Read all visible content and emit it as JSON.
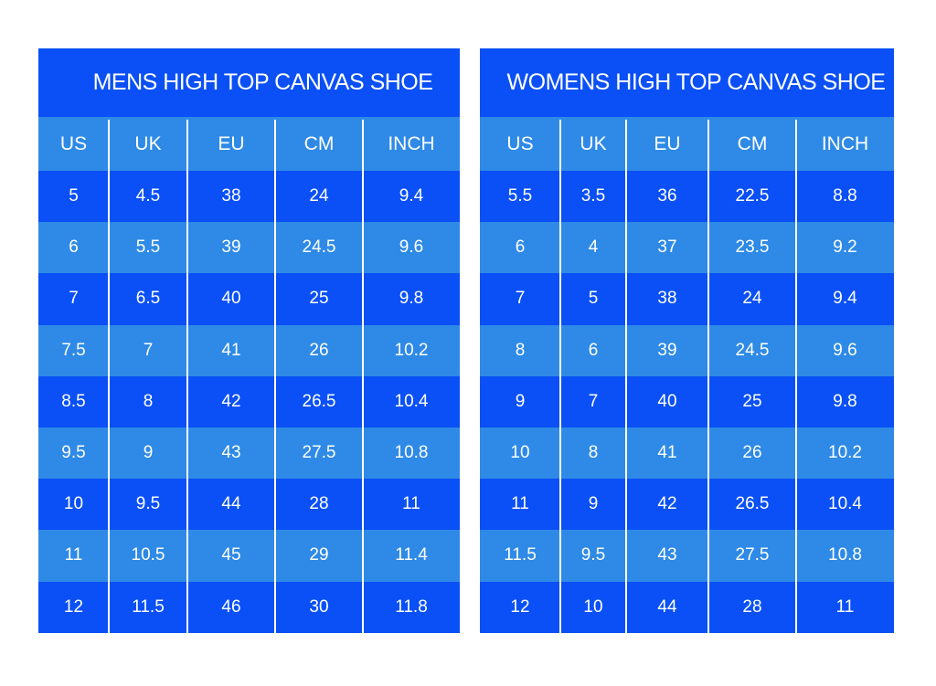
{
  "tables": [
    {
      "title": "MENS HIGH TOP CANVAS SHOE",
      "headers": [
        "US",
        "UK",
        "EU",
        "CM",
        "INCH"
      ],
      "rows": [
        [
          "5",
          "4.5",
          "38",
          "24",
          "9.4"
        ],
        [
          "6",
          "5.5",
          "39",
          "24.5",
          "9.6"
        ],
        [
          "7",
          "6.5",
          "40",
          "25",
          "9.8"
        ],
        [
          "7.5",
          "7",
          "41",
          "26",
          "10.2"
        ],
        [
          "8.5",
          "8",
          "42",
          "26.5",
          "10.4"
        ],
        [
          "9.5",
          "9",
          "43",
          "27.5",
          "10.8"
        ],
        [
          "10",
          "9.5",
          "44",
          "28",
          "11"
        ],
        [
          "11",
          "10.5",
          "45",
          "29",
          "11.4"
        ],
        [
          "12",
          "11.5",
          "46",
          "30",
          "11.8"
        ]
      ]
    },
    {
      "title": "WOMENS HIGH TOP CANVAS SHOE",
      "headers": [
        "US",
        "UK",
        "EU",
        "CM",
        "INCH"
      ],
      "rows": [
        [
          "5.5",
          "3.5",
          "36",
          "22.5",
          "8.8"
        ],
        [
          "6",
          "4",
          "37",
          "23.5",
          "9.2"
        ],
        [
          "7",
          "5",
          "38",
          "24",
          "9.4"
        ],
        [
          "8",
          "6",
          "39",
          "24.5",
          "9.6"
        ],
        [
          "9",
          "7",
          "40",
          "25",
          "9.8"
        ],
        [
          "10",
          "8",
          "41",
          "26",
          "10.2"
        ],
        [
          "11",
          "9",
          "42",
          "26.5",
          "10.4"
        ],
        [
          "11.5",
          "9.5",
          "43",
          "27.5",
          "10.8"
        ],
        [
          "12",
          "10",
          "44",
          "28",
          "11"
        ]
      ]
    }
  ]
}
